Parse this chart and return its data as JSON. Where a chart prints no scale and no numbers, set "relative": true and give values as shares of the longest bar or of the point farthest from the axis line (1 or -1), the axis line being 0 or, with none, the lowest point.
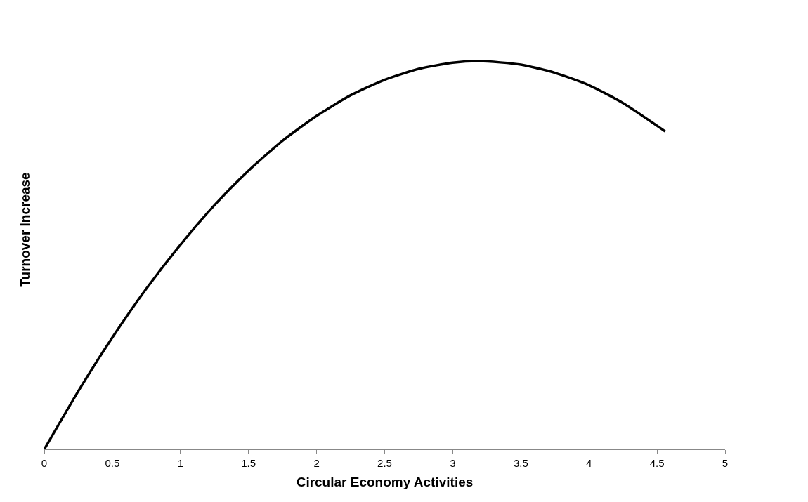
{
  "chart_data": {
    "type": "line",
    "xlabel": "Circular Economy Activities",
    "ylabel": "Turnover Increase",
    "relative": true,
    "xlim": [
      0,
      5
    ],
    "xticks": [
      0,
      0.5,
      1,
      1.5,
      2,
      2.5,
      3,
      3.5,
      4,
      4.5,
      5
    ],
    "grid": false,
    "marker": "none",
    "line_style": "solid",
    "series": [
      {
        "color": "#000000",
        "x": [
          0,
          0.25,
          0.5,
          0.75,
          1,
          1.25,
          1.5,
          1.75,
          2,
          2.25,
          2.5,
          2.75,
          3,
          3.2,
          3.5,
          3.75,
          4,
          4.25,
          4.56
        ],
        "values": [
          0,
          0.15,
          0.288,
          0.414,
          0.527,
          0.629,
          0.718,
          0.795,
          0.859,
          0.912,
          0.952,
          0.98,
          0.996,
          1,
          0.991,
          0.97,
          0.938,
          0.892,
          0.819
        ]
      }
    ]
  }
}
